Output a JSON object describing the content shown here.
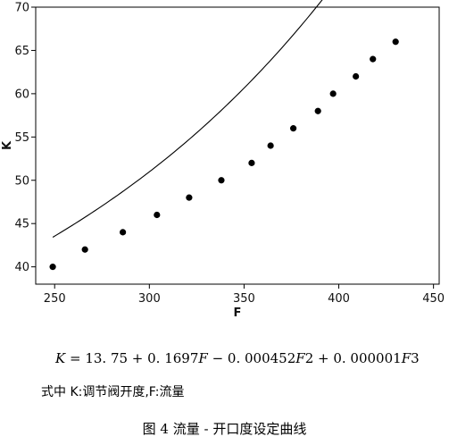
{
  "chart_data": {
    "type": "scatter",
    "xlabel": "F",
    "ylabel": "K",
    "xlim": [
      240,
      453
    ],
    "ylim": [
      38,
      70
    ],
    "xticks": [
      250,
      300,
      350,
      400,
      450
    ],
    "yticks": [
      40,
      45,
      50,
      55,
      60,
      65,
      70
    ],
    "grid": false,
    "legend": "none",
    "points": {
      "x": [
        249,
        266,
        286,
        304,
        321,
        338,
        354,
        364,
        376,
        389,
        397,
        409,
        418,
        430
      ],
      "y": [
        40,
        42,
        44,
        46,
        48,
        50,
        52,
        54,
        56,
        58,
        60,
        62,
        64,
        66
      ]
    },
    "fit": {
      "type": "cubic",
      "coefficients": [
        13.75,
        0.1697,
        -0.000452,
        1e-06
      ],
      "x_range": [
        249,
        430
      ]
    }
  },
  "text": {
    "formula": {
      "k": "K",
      "part1": " = 13. 75 + 0. 1697",
      "f1": "F",
      "part2": " − 0. 000452",
      "f2": "F",
      "part3": "2 + 0. 000001",
      "f3": "F",
      "part4": "3"
    },
    "note": "式中 K:调节阀开度,F:流量",
    "caption": "图 4   流量 - 开口度设定曲线"
  },
  "colors": {
    "marker": "#000000",
    "line": "#000000",
    "axis": "#000000"
  }
}
